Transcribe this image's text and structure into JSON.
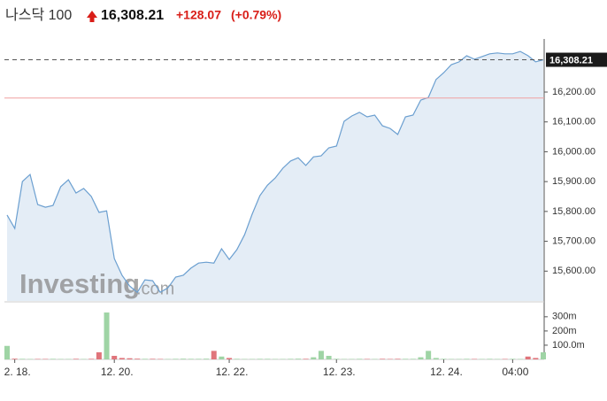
{
  "header": {
    "title": "나스닥 100",
    "price": "16,308.21",
    "change": "+128.07",
    "change_pct": "(+0.79%)"
  },
  "chart_data": {
    "type": "area",
    "watermark": [
      "Investing",
      ".com"
    ],
    "color": "#6b9fd0",
    "fill": "#e4edf6",
    "categories": [
      null,
      "2. 18.",
      null,
      null,
      null,
      null,
      null,
      null,
      null,
      null,
      null,
      null,
      null,
      null,
      "12. 20.",
      null,
      null,
      null,
      null,
      null,
      null,
      null,
      null,
      null,
      null,
      null,
      null,
      null,
      null,
      "12. 22.",
      null,
      null,
      null,
      null,
      null,
      null,
      null,
      null,
      null,
      null,
      null,
      null,
      null,
      "12. 23.",
      null,
      null,
      null,
      null,
      null,
      null,
      null,
      null,
      null,
      null,
      null,
      null,
      null,
      "12. 24.",
      null,
      null,
      null,
      null,
      null,
      null,
      null,
      null,
      "04:00",
      null,
      null,
      null,
      null
    ],
    "values": [
      15788,
      15743,
      15900,
      15924,
      15823,
      15814,
      15820,
      15883,
      15906,
      15862,
      15877,
      15850,
      15797,
      15802,
      15642,
      15586,
      15550,
      15529,
      15571,
      15568,
      15529,
      15544,
      15580,
      15586,
      15610,
      15627,
      15630,
      15627,
      15675,
      15639,
      15672,
      15722,
      15791,
      15853,
      15888,
      15912,
      15945,
      15969,
      15980,
      15954,
      15983,
      15986,
      16013,
      16019,
      16102,
      16120,
      16132,
      16117,
      16123,
      16087,
      16078,
      16058,
      16117,
      16123,
      16173,
      16182,
      16242,
      16265,
      16292,
      16301,
      16322,
      16310,
      16319,
      16328,
      16331,
      16328,
      16328,
      16336,
      16322,
      16301,
      16308.21
    ],
    "last_label": "16,308.21",
    "previous_close": 16180.14,
    "ylim": [
      15500,
      16375
    ],
    "yticks": [
      {
        "value": 15600,
        "label": "15,600.00"
      },
      {
        "value": 15700,
        "label": "15,700.00"
      },
      {
        "value": 15800,
        "label": "15,800.00"
      },
      {
        "value": 15900,
        "label": "15,900.00"
      },
      {
        "value": 16000,
        "label": "16,000.00"
      },
      {
        "value": 16100,
        "label": "16,100.00"
      },
      {
        "value": 16200,
        "label": "16,200.00"
      }
    ],
    "volume": [
      95,
      5,
      4,
      3,
      3,
      3,
      4,
      3,
      3,
      4,
      3,
      4,
      50,
      330,
      25,
      10,
      8,
      5,
      4,
      4,
      3,
      3,
      4,
      5,
      4,
      4,
      5,
      60,
      20,
      10,
      4,
      3,
      3,
      4,
      4,
      3,
      3,
      4,
      5,
      4,
      15,
      60,
      25,
      4,
      3,
      3,
      4,
      3,
      3,
      4,
      3,
      4,
      4,
      4,
      15,
      60,
      10,
      4,
      3,
      3,
      4,
      3,
      3,
      4,
      3,
      3,
      4,
      3,
      20,
      10,
      50
    ],
    "volume_up_color": "#9fd4a5",
    "volume_down_color": "#e0747b",
    "volume_ylim": [
      0,
      380
    ],
    "volume_ticks": [
      {
        "value": 100,
        "label": "100.0m"
      },
      {
        "value": 200,
        "label": "200m"
      },
      {
        "value": 300,
        "label": "300m"
      }
    ]
  }
}
